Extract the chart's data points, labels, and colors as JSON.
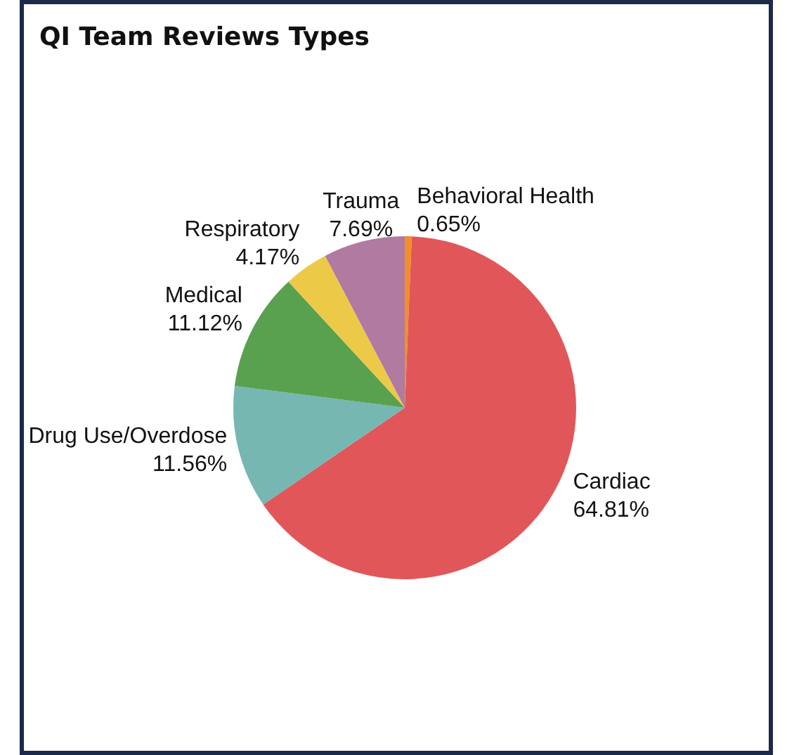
{
  "chart_data": {
    "type": "pie",
    "title": "QI Team Reviews Types",
    "categories": [
      "Behavioral Health",
      "Cardiac",
      "Drug Use/Overdose",
      "Medical",
      "Respiratory",
      "Trauma"
    ],
    "values": [
      0.65,
      64.81,
      11.56,
      11.12,
      4.17,
      7.69
    ],
    "colors": [
      "#f28e2b",
      "#e15759",
      "#76b7b2",
      "#59a14f",
      "#edc948",
      "#b07aa1"
    ],
    "value_labels": [
      "0.65%",
      "64.81%",
      "11.56%",
      "11.12%",
      "4.17%",
      "7.69%"
    ],
    "legend": false
  }
}
